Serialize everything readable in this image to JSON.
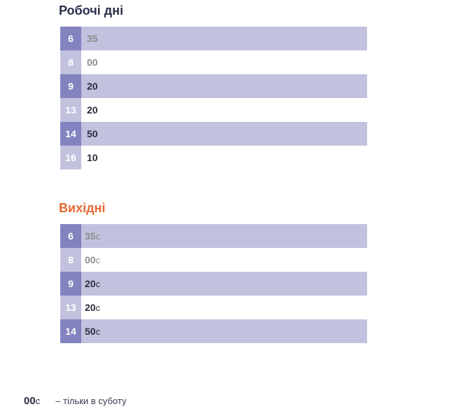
{
  "weekdays": {
    "title": "Робочі дні",
    "rows": [
      {
        "hour": "6",
        "minutes": "35",
        "muted": true
      },
      {
        "hour": "8",
        "minutes": "00",
        "muted": true
      },
      {
        "hour": "9",
        "minutes": "20",
        "muted": false
      },
      {
        "hour": "13",
        "minutes": "20",
        "muted": false
      },
      {
        "hour": "14",
        "minutes": "50",
        "muted": false
      },
      {
        "hour": "16",
        "minutes": "10",
        "muted": false
      }
    ]
  },
  "weekend": {
    "title": "Вихідні",
    "rows": [
      {
        "hour": "6",
        "minutes": "35",
        "suffix": "с",
        "muted": true
      },
      {
        "hour": "8",
        "minutes": "00",
        "suffix": "с",
        "muted": true
      },
      {
        "hour": "9",
        "minutes": "20",
        "suffix": "с",
        "muted": false
      },
      {
        "hour": "13",
        "minutes": "20",
        "suffix": "с",
        "muted": false
      },
      {
        "hour": "14",
        "minutes": "50",
        "suffix": "с",
        "muted": false
      }
    ]
  },
  "legend": {
    "sample_minutes": "00",
    "sample_suffix": "с",
    "text": "– тільки в суботу"
  },
  "colors": {
    "weekend_title": "#e36a35",
    "weekday_title": "#2a2f4a",
    "row_shaded": "#c2c2df",
    "hour_dark": "#8383c0",
    "hour_light": "#c2c2df"
  }
}
